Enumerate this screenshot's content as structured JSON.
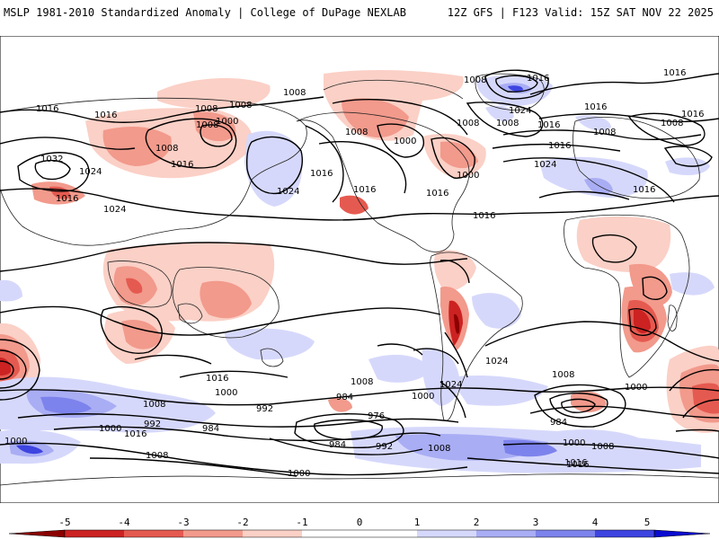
{
  "header": {
    "left_title": "MSLP 1981-2010 Standardized Anomaly | College of DuPage NEXLAB",
    "right_title": "12Z GFS | F123 Valid: 15Z SAT NOV 22 2025"
  },
  "colors": {
    "neg5": "#8b0000",
    "neg4": "#cc2222",
    "neg3": "#e55a50",
    "neg2": "#f29a8c",
    "neg1": "#fbd0c6",
    "pos1": "#d6d8fb",
    "pos2": "#a9adf4",
    "pos3": "#7d83ec",
    "pos4": "#3d44e0",
    "pos5": "#0a0ad0",
    "contour": "#000000"
  },
  "colorbar": {
    "ticks": [
      "-5",
      "-4",
      "-3",
      "-2",
      "-1",
      "0",
      "1",
      "2",
      "3",
      "4",
      "5"
    ]
  },
  "isobar_labels": [
    {
      "id": "l1",
      "text": "1008"
    },
    {
      "id": "l2",
      "text": "1016"
    },
    {
      "id": "l3",
      "text": "1008"
    },
    {
      "id": "l4",
      "text": "1016"
    },
    {
      "id": "l5",
      "text": "1008"
    },
    {
      "id": "l6",
      "text": "1008"
    },
    {
      "id": "l7",
      "text": "1000"
    },
    {
      "id": "l8",
      "text": "1008"
    },
    {
      "id": "l9",
      "text": "1032"
    },
    {
      "id": "l10",
      "text": "1016"
    },
    {
      "id": "l11",
      "text": "1024"
    },
    {
      "id": "l12",
      "text": "1016"
    },
    {
      "id": "l13",
      "text": "1024"
    },
    {
      "id": "l14",
      "text": "1016"
    },
    {
      "id": "l15",
      "text": "1024"
    },
    {
      "id": "l16",
      "text": "1016"
    },
    {
      "id": "l17",
      "text": "1008"
    },
    {
      "id": "l18",
      "text": "1000"
    },
    {
      "id": "l19",
      "text": "1016"
    },
    {
      "id": "l20",
      "text": "1008"
    },
    {
      "id": "l21",
      "text": "1024"
    },
    {
      "id": "l22",
      "text": "1008"
    },
    {
      "id": "l23",
      "text": "1000"
    },
    {
      "id": "l24",
      "text": "1016"
    },
    {
      "id": "l25",
      "text": "1016"
    },
    {
      "id": "l26",
      "text": "1016"
    },
    {
      "id": "l27",
      "text": "1008"
    },
    {
      "id": "l28",
      "text": "1008"
    },
    {
      "id": "l29",
      "text": "1008"
    },
    {
      "id": "l30",
      "text": "1016"
    },
    {
      "id": "l31",
      "text": "1016"
    },
    {
      "id": "l32",
      "text": "1016"
    },
    {
      "id": "l33",
      "text": "1024"
    },
    {
      "id": "l34",
      "text": "1016"
    },
    {
      "id": "l35",
      "text": "1016"
    },
    {
      "id": "l36",
      "text": "1000"
    },
    {
      "id": "l37",
      "text": "1008"
    },
    {
      "id": "l38",
      "text": "992"
    },
    {
      "id": "l39",
      "text": "984"
    },
    {
      "id": "l40",
      "text": "976"
    },
    {
      "id": "l41",
      "text": "1000"
    },
    {
      "id": "l42",
      "text": "1024"
    },
    {
      "id": "l43",
      "text": "1000"
    },
    {
      "id": "l44",
      "text": "1008"
    },
    {
      "id": "l45",
      "text": "1008"
    },
    {
      "id": "l46",
      "text": "1016"
    },
    {
      "id": "l47",
      "text": "1000"
    },
    {
      "id": "l48",
      "text": "1016"
    },
    {
      "id": "l49",
      "text": "984"
    },
    {
      "id": "l50",
      "text": "1000"
    },
    {
      "id": "l51",
      "text": "1008"
    },
    {
      "id": "l52",
      "text": "1016"
    },
    {
      "id": "l53",
      "text": "992"
    },
    {
      "id": "l54",
      "text": "984"
    },
    {
      "id": "l55",
      "text": "1008"
    },
    {
      "id": "l56",
      "text": "1000"
    },
    {
      "id": "l57",
      "text": "984"
    },
    {
      "id": "l58",
      "text": "992"
    },
    {
      "id": "l59",
      "text": "1000"
    },
    {
      "id": "l60",
      "text": "1008"
    },
    {
      "id": "l61",
      "text": "1016"
    },
    {
      "id": "l62",
      "text": "1024"
    }
  ]
}
